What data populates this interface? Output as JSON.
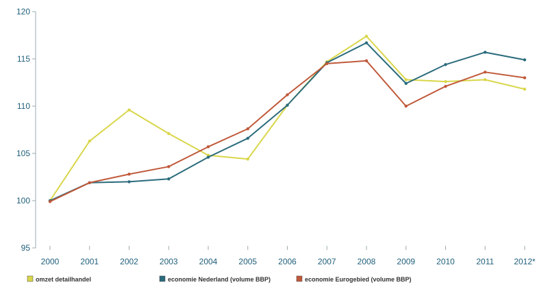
{
  "chart_data": {
    "type": "line",
    "categories": [
      "2000",
      "2001",
      "2002",
      "2003",
      "2004",
      "2005",
      "2006",
      "2007",
      "2008",
      "2009",
      "2010",
      "2011",
      "2012*"
    ],
    "ylim": [
      95,
      120
    ],
    "yticks": [
      95,
      100,
      105,
      110,
      115,
      120
    ],
    "grid": false,
    "legend_position": "bottom",
    "series": [
      {
        "name": "omzet detailhandel",
        "color": "#d9d64a",
        "values": [
          100.0,
          106.3,
          109.6,
          107.1,
          104.8,
          104.4,
          110.1,
          114.7,
          117.4,
          112.8,
          112.6,
          112.8,
          111.8
        ]
      },
      {
        "name": "economie Nederland (volume BBP)",
        "color": "#2a6b7c",
        "values": [
          100.0,
          101.9,
          102.0,
          102.3,
          104.6,
          106.6,
          110.1,
          114.6,
          116.7,
          112.4,
          114.4,
          115.7,
          114.9
        ]
      },
      {
        "name": "economie Eurogebied (volume BBP)",
        "color": "#c0593a",
        "values": [
          99.9,
          101.9,
          102.8,
          103.6,
          105.7,
          107.6,
          111.2,
          114.5,
          114.8,
          110.0,
          112.1,
          113.6,
          113.0
        ]
      }
    ]
  }
}
